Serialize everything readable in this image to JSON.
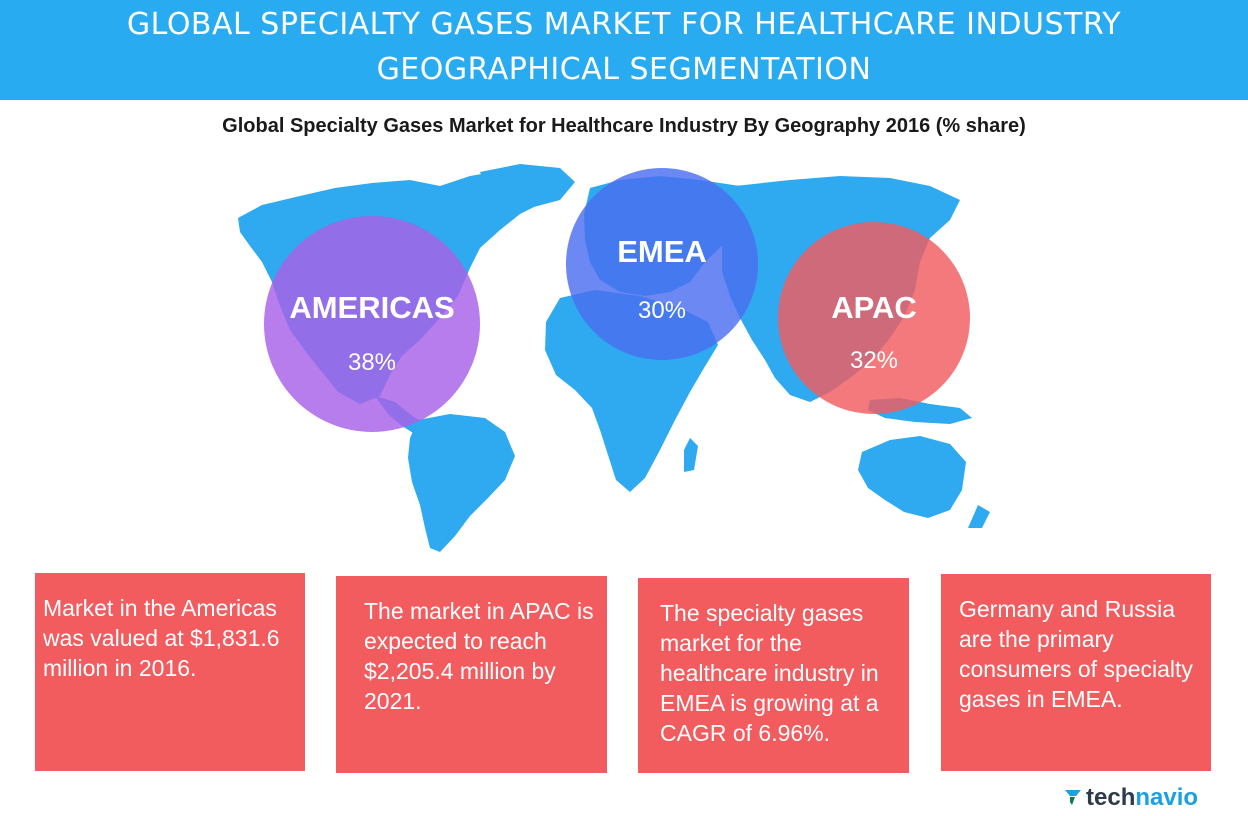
{
  "header": {
    "title_line1": "GLOBAL SPECIALTY GASES MARKET FOR HEALTHCARE INDUSTRY",
    "title_line2": "GEOGRAPHICAL SEGMENTATION"
  },
  "chart_data": {
    "type": "pie",
    "title": "Global Specialty Gases Market for Healthcare Industry By Geography 2016 (% share)",
    "categories": [
      "AMERICAS",
      "EMEA",
      "APAC"
    ],
    "values": [
      38,
      30,
      32
    ],
    "value_labels": [
      "38%",
      "30%",
      "32%"
    ],
    "colors": [
      "#a860e8",
      "#4a6ef0",
      "#f25c5f"
    ]
  },
  "facts": [
    "Market in the Americas was valued at $1,831.6 million in 2016.",
    "The market in APAC is expected to reach $2,205.4 million by 2021.",
    "The specialty gases market for the healthcare industry in EMEA is growing at a CAGR of 6.96%.",
    "Germany and Russia are the primary consumers of specialty gases in EMEA."
  ],
  "brand": {
    "name_part1": "tech",
    "name_part2": "navio",
    "map_color": "#2fa9ef",
    "banner_color": "#29abf2",
    "box_color": "#f25c5f"
  }
}
